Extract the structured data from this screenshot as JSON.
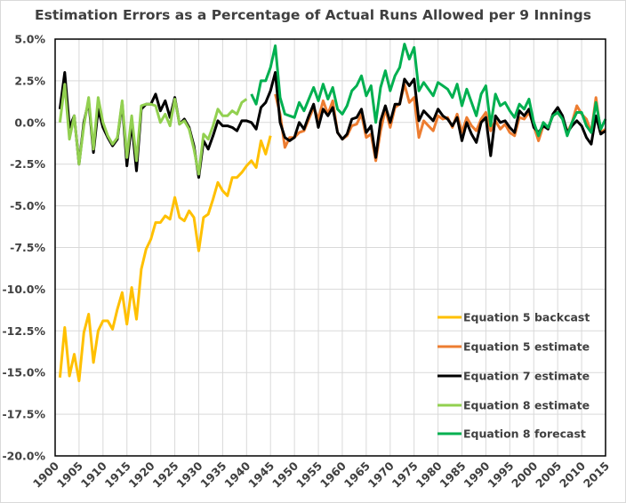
{
  "chart_data": {
    "type": "line",
    "title": "Estimation Errors as a Percentage of Actual Runs Allowed per 9 Innings",
    "xlabel": "",
    "ylabel": "",
    "xlim": [
      1900,
      2015
    ],
    "ylim": [
      -20,
      5
    ],
    "x_ticks": [
      "1900",
      "1905",
      "1910",
      "1915",
      "1920",
      "1925",
      "1930",
      "1935",
      "1940",
      "1945",
      "1950",
      "1955",
      "1960",
      "1965",
      "1970",
      "1975",
      "1980",
      "1985",
      "1990",
      "1995",
      "2000",
      "2005",
      "2010",
      "2015"
    ],
    "y_ticks": [
      "5.0%",
      "2.5%",
      "0.0%",
      "-2.5%",
      "-5.0%",
      "-7.5%",
      "-10.0%",
      "-12.5%",
      "-15.0%",
      "-17.5%",
      "-20.0%"
    ],
    "grid": true,
    "legend_position": "bottom-right inside",
    "series": [
      {
        "name": "Equation 5 backcast",
        "color": "#FFC000",
        "start_year": 1901,
        "values": [
          -15.3,
          -12.3,
          -15.2,
          -13.9,
          -15.5,
          -12.6,
          -11.5,
          -14.4,
          -12.5,
          -11.9,
          -11.9,
          -12.4,
          -11.2,
          -10.2,
          -12.1,
          -9.9,
          -11.8,
          -8.8,
          -7.6,
          -7.0,
          -6.0,
          -6.0,
          -5.6,
          -5.8,
          -4.5,
          -5.7,
          -5.9,
          -5.3,
          -5.7,
          -7.7,
          -5.7,
          -5.5,
          -4.6,
          -3.6,
          -4.1,
          -4.4,
          -3.3,
          -3.3,
          -3.0,
          -2.6,
          -2.3,
          -2.7,
          -1.1,
          -1.9,
          -0.8
        ]
      },
      {
        "name": "Equation 5 estimate",
        "color": "#ED7D31",
        "start_year": 1946,
        "values": [
          1.7,
          0.5,
          -1.5,
          -0.9,
          -0.9,
          -0.6,
          -0.5,
          0.2,
          0.9,
          0.2,
          1.3,
          0.5,
          1.3,
          -0.6,
          -1.0,
          -0.8,
          -0.2,
          -0.1,
          0.5,
          -0.9,
          -0.7,
          -2.3,
          -0.5,
          0.8,
          -0.3,
          0.9,
          1.1,
          2.3,
          1.2,
          1.5,
          -0.9,
          0.1,
          -0.2,
          -0.5,
          0.4,
          0.2,
          0.3,
          -0.3,
          0.5,
          -0.6,
          0.3,
          -0.2,
          -0.5,
          0.2,
          0.6,
          -0.5,
          0.1,
          -0.4,
          -0.1,
          -0.6,
          -0.8,
          0.3,
          0.2,
          0.6,
          -0.2,
          -1.1,
          -0.2,
          -0.3,
          0.4,
          0.6,
          0.2,
          -0.6,
          0.0,
          1.0,
          0.5,
          0.2,
          -0.6,
          1.5,
          -0.6,
          -0.4
        ]
      },
      {
        "name": "Equation 7 estimate",
        "color": "#000000",
        "start_year": 1901,
        "values": [
          0.8,
          3.0,
          -0.3,
          0.4,
          -2.5,
          0.0,
          1.3,
          -1.8,
          0.8,
          -0.3,
          -0.9,
          -1.4,
          -1.0,
          1.2,
          -2.6,
          0.0,
          -2.9,
          0.8,
          1.1,
          1.1,
          1.7,
          0.7,
          1.3,
          0.3,
          1.5,
          -0.1,
          0.2,
          -0.3,
          -1.4,
          -3.3,
          -1.1,
          -1.6,
          -0.8,
          0.1,
          -0.2,
          -0.2,
          -0.3,
          -0.5,
          0.1,
          0.1,
          0.0,
          -0.4,
          0.9,
          1.2,
          1.9,
          3.0,
          0.0,
          -0.9,
          -1.1,
          -0.9,
          0.0,
          -0.4,
          0.4,
          1.1,
          -0.3,
          0.8,
          0.4,
          0.9,
          -0.6,
          -1.0,
          -0.7,
          0.2,
          0.3,
          0.8,
          -0.6,
          -0.2,
          -2.1,
          0.1,
          1.0,
          0.0,
          1.1,
          1.1,
          2.6,
          2.2,
          2.6,
          0.1,
          0.7,
          0.4,
          0.1,
          0.8,
          0.4,
          0.2,
          -0.2,
          0.3,
          -1.1,
          0.0,
          -0.7,
          -1.2,
          0.0,
          0.3,
          -2.0,
          0.4,
          0.0,
          0.1,
          -0.3,
          -0.6,
          0.7,
          0.4,
          0.8,
          -0.3,
          -0.6,
          -0.2,
          -0.4,
          0.5,
          0.9,
          0.4,
          -0.6,
          -0.2,
          0.1,
          -0.2,
          -0.9,
          -1.3,
          0.4,
          -0.7,
          -0.5
        ]
      },
      {
        "name": "Equation 8 estimate",
        "color": "#92D050",
        "start_year": 1901,
        "values": [
          0.0,
          2.3,
          -1.0,
          0.4,
          -2.5,
          -0.2,
          1.5,
          -1.6,
          1.5,
          0.0,
          -0.8,
          -1.3,
          -0.9,
          1.3,
          -2.1,
          0.4,
          -2.3,
          1.0,
          1.1,
          1.1,
          1.0,
          0.0,
          0.5,
          -0.2,
          1.4,
          -0.1,
          0.1,
          -0.4,
          -1.6,
          -3.1,
          -0.7,
          -1.0,
          -0.2,
          0.8,
          0.4,
          0.4,
          0.7,
          0.5,
          1.2,
          1.4
        ]
      },
      {
        "name": "Equation 8 forecast",
        "color": "#00B050",
        "start_year": 1941,
        "values": [
          1.7,
          1.1,
          2.5,
          2.5,
          3.3,
          4.6,
          1.5,
          0.5,
          0.4,
          0.3,
          1.2,
          0.7,
          1.4,
          2.1,
          1.3,
          2.3,
          1.4,
          2.1,
          0.8,
          0.5,
          1.0,
          1.9,
          2.2,
          2.8,
          1.6,
          2.2,
          0.0,
          2.1,
          3.1,
          1.9,
          2.8,
          3.3,
          4.7,
          3.8,
          4.5,
          1.9,
          2.4,
          2.0,
          1.6,
          2.4,
          2.2,
          2.0,
          1.5,
          2.3,
          1.0,
          2.0,
          1.2,
          0.4,
          1.7,
          2.2,
          -0.2,
          1.7,
          1.0,
          1.2,
          0.7,
          0.3,
          1.1,
          0.8,
          1.4,
          0.0,
          -0.8,
          0.0,
          -0.3,
          0.4,
          0.6,
          0.2,
          -0.8,
          0.0,
          0.6,
          0.6,
          -0.2,
          -0.6,
          1.2,
          -0.4,
          0.2
        ]
      }
    ]
  }
}
